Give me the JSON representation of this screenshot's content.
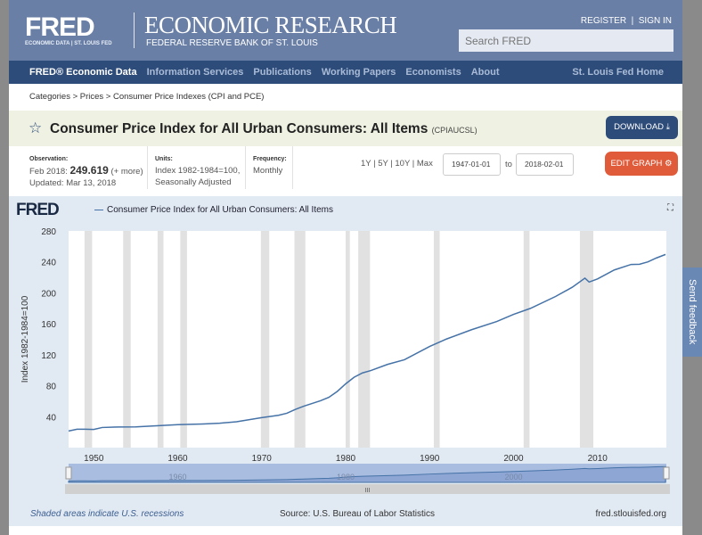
{
  "header": {
    "logo": "FRED",
    "logo_sub": "ECONOMIC DATA | ST. LOUIS FED",
    "title": "ECONOMIC RESEARCH",
    "subtitle": "FEDERAL RESERVE BANK OF ST. LOUIS",
    "register": "REGISTER",
    "sign_in": "SIGN IN",
    "search_placeholder": "Search FRED"
  },
  "nav": {
    "items": [
      "FRED® Economic Data",
      "Information Services",
      "Publications",
      "Working Papers",
      "Economists",
      "About"
    ],
    "right": "St. Louis Fed Home"
  },
  "breadcrumb": "Categories > Prices > Consumer Price Indexes (CPI and PCE)",
  "series": {
    "title": "Consumer Price Index for All Urban Consumers: All Items",
    "id": "(CPIAUCSL)",
    "download": "DOWNLOAD"
  },
  "meta": {
    "obs_label": "Observation:",
    "obs_date": "Feb 2018:",
    "obs_value": "249.619",
    "obs_more": "(+ more)",
    "updated": "Updated: Mar 13, 2018",
    "units_label": "Units:",
    "units1": "Index 1982-1984=100,",
    "units2": "Seasonally Adjusted",
    "freq_label": "Frequency:",
    "freq": "Monthly",
    "ranges": "1Y | 5Y | 10Y | Max",
    "start": "1947-01-01",
    "to": "to",
    "end": "2018-02-01",
    "edit": "EDIT GRAPH"
  },
  "chart_data": {
    "type": "line",
    "logo": "FRED",
    "legend": "Consumer Price Index for All Urban Consumers: All Items",
    "ylabel": "Index 1982-1984=100",
    "xlim": [
      1947,
      2018.2
    ],
    "ylim": [
      0,
      280
    ],
    "yticks": [
      40,
      80,
      120,
      160,
      200,
      240,
      280
    ],
    "xticks": [
      1950,
      1960,
      1970,
      1980,
      1990,
      2000,
      2010
    ],
    "navigator_ticks": [
      "1960",
      "1980",
      "2000"
    ],
    "x": [
      1947,
      1948,
      1949,
      1950,
      1951,
      1953,
      1955,
      1957,
      1960,
      1963,
      1965,
      1967,
      1970,
      1972,
      1973,
      1974,
      1975,
      1977,
      1978,
      1979,
      1980,
      1981,
      1982,
      1983,
      1985,
      1987,
      1990,
      1992,
      1995,
      1998,
      2000,
      2002,
      2005,
      2007,
      2008.5,
      2009,
      2010,
      2012,
      2014,
      2015,
      2016,
      2017,
      2018.1
    ],
    "y": [
      21.5,
      23.7,
      23.8,
      23.5,
      26,
      26.7,
      26.8,
      28,
      29.6,
      30.6,
      31.5,
      33.4,
      38.8,
      41.8,
      44.4,
      49.3,
      53.5,
      60.6,
      65,
      72.6,
      82.4,
      90.9,
      96.5,
      99.6,
      107.6,
      113.6,
      130.7,
      140.3,
      152.4,
      163,
      172.2,
      179.9,
      195.3,
      207.3,
      219,
      214,
      218,
      229.6,
      236.7,
      237,
      240,
      245,
      249.6
    ],
    "recessions": [
      [
        1948.9,
        1949.8
      ],
      [
        1953.5,
        1954.4
      ],
      [
        1957.6,
        1958.3
      ],
      [
        1960.3,
        1961.1
      ],
      [
        1969.9,
        1970.9
      ],
      [
        1973.9,
        1975.2
      ],
      [
        1980,
        1980.5
      ],
      [
        1981.5,
        1982.9
      ],
      [
        1990.5,
        1991.2
      ],
      [
        2001.2,
        2001.9
      ],
      [
        2007.9,
        2009.5
      ]
    ],
    "recession_color": "#e1e1e1",
    "line_color": "#4572a7",
    "grid": false
  },
  "footer": {
    "recessions_note": "Shaded areas indicate U.S. recessions",
    "source": "Source: U.S. Bureau of Labor Statistics",
    "site": "fred.stlouisfed.org"
  },
  "feedback": "Send feedback"
}
